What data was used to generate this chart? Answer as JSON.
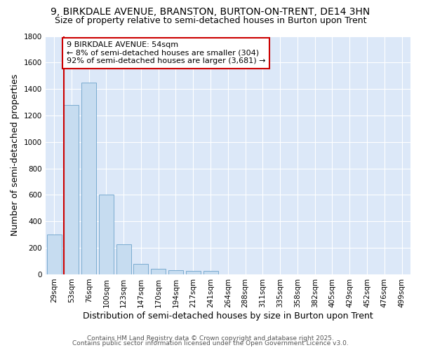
{
  "title": "9, BIRKDALE AVENUE, BRANSTON, BURTON-ON-TRENT, DE14 3HN",
  "subtitle": "Size of property relative to semi-detached houses in Burton upon Trent",
  "xlabel": "Distribution of semi-detached houses by size in Burton upon Trent",
  "ylabel": "Number of semi-detached properties",
  "categories": [
    "29sqm",
    "53sqm",
    "76sqm",
    "100sqm",
    "123sqm",
    "147sqm",
    "170sqm",
    "194sqm",
    "217sqm",
    "241sqm",
    "264sqm",
    "288sqm",
    "311sqm",
    "335sqm",
    "358sqm",
    "382sqm",
    "405sqm",
    "429sqm",
    "452sqm",
    "476sqm",
    "499sqm"
  ],
  "values": [
    300,
    1280,
    1450,
    600,
    225,
    80,
    40,
    30,
    25,
    25,
    0,
    0,
    2,
    0,
    0,
    0,
    0,
    0,
    0,
    0,
    0
  ],
  "bar_color": "#c6dcf0",
  "bar_edge_color": "#7aabcf",
  "annotation_line1": "9 BIRKDALE AVENUE: 54sqm",
  "annotation_line2": "← 8% of semi-detached houses are smaller (304)",
  "annotation_line3": "92% of semi-detached houses are larger (3,681) →",
  "annotation_box_color": "#ffffff",
  "annotation_box_edge": "#cc0000",
  "property_line_color": "#cc0000",
  "ylim": [
    0,
    1800
  ],
  "yticks": [
    0,
    200,
    400,
    600,
    800,
    1000,
    1200,
    1400,
    1600,
    1800
  ],
  "footer1": "Contains HM Land Registry data © Crown copyright and database right 2025.",
  "footer2": "Contains public sector information licensed under the Open Government Licence v3.0.",
  "bg_color": "#ffffff",
  "plot_bg_color": "#dce8f8",
  "title_fontsize": 10,
  "subtitle_fontsize": 9,
  "grid_color": "#ffffff",
  "tick_label_fontsize": 7.5,
  "axis_label_fontsize": 9,
  "footer_fontsize": 6.5,
  "property_bar_index": 1
}
